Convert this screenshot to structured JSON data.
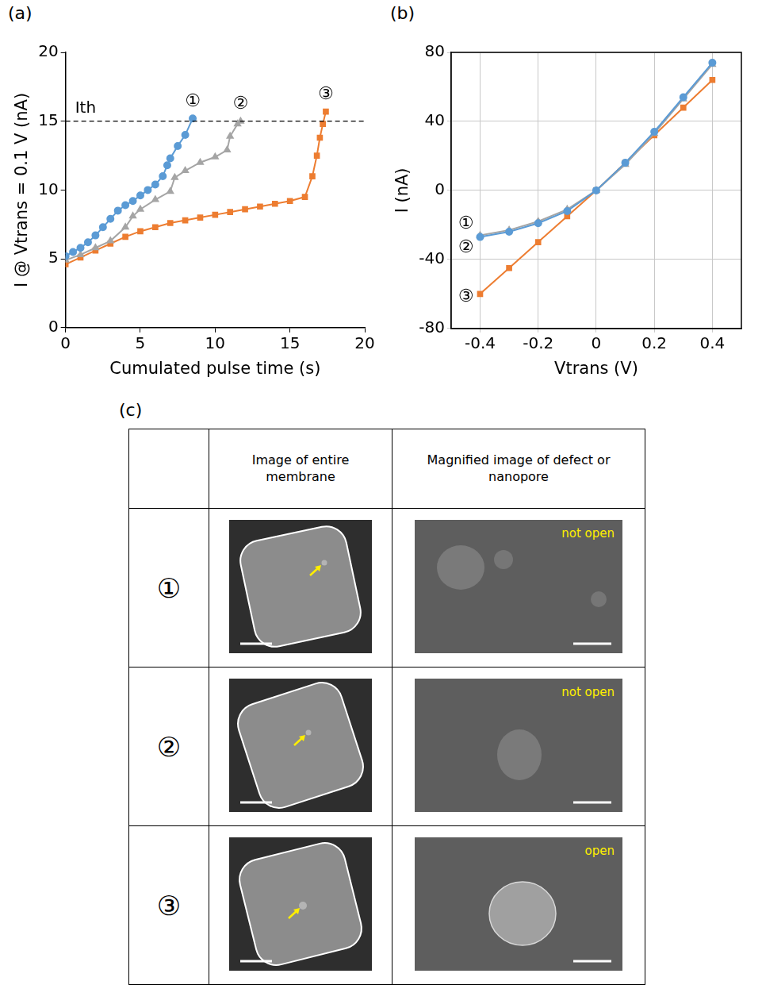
{
  "chart_data": [
    {
      "panel": "(a)",
      "type": "line",
      "xlabel": "Cumulated pulse time (s)",
      "ylabel": "I @ Vtrans = 0.1 V (nA)",
      "xlim": [
        0,
        20
      ],
      "xticks": [
        0,
        5,
        10,
        15,
        20
      ],
      "ylim": [
        0,
        20
      ],
      "yticks": [
        0,
        5,
        10,
        15,
        20
      ],
      "grid": false,
      "annotations": [
        {
          "text": "Ith",
          "y": 15,
          "line_style": "dashed"
        }
      ],
      "series": [
        {
          "name": "①",
          "color": "#5b9bd5",
          "marker": "circle",
          "x": [
            0,
            0.5,
            1,
            1.5,
            2,
            2.5,
            3,
            3.5,
            4,
            4.5,
            5,
            5.5,
            6,
            6.5,
            6.8,
            7,
            7.5,
            8,
            8.5
          ],
          "values": [
            5.2,
            5.5,
            5.8,
            6.2,
            6.7,
            7.3,
            7.9,
            8.5,
            8.9,
            9.2,
            9.6,
            10.0,
            10.4,
            11.0,
            11.8,
            12.3,
            13.2,
            14.0,
            15.2
          ]
        },
        {
          "name": "②",
          "color": "#a5a5a5",
          "marker": "triangle",
          "x": [
            0,
            1,
            2,
            3,
            4,
            4.5,
            5,
            6,
            7,
            7.3,
            8,
            9,
            10,
            10.8,
            11,
            11.5,
            11.7
          ],
          "values": [
            4.9,
            5.3,
            5.8,
            6.3,
            7.3,
            8.1,
            8.6,
            9.3,
            9.9,
            10.9,
            11.4,
            12.0,
            12.4,
            12.9,
            13.9,
            14.8,
            15.0
          ]
        },
        {
          "name": "③",
          "color": "#ed7d31",
          "marker": "square",
          "x": [
            0,
            1,
            2,
            3,
            4,
            5,
            6,
            7,
            8,
            9,
            10,
            11,
            12,
            13,
            14,
            15,
            16,
            16.5,
            16.8,
            17,
            17.2,
            17.4
          ],
          "values": [
            4.6,
            5.1,
            5.6,
            6.1,
            6.6,
            7.0,
            7.3,
            7.6,
            7.8,
            8.0,
            8.2,
            8.4,
            8.6,
            8.8,
            9.0,
            9.2,
            9.5,
            11.0,
            12.5,
            13.8,
            14.8,
            15.7
          ]
        }
      ]
    },
    {
      "panel": "(b)",
      "type": "line",
      "xlabel": "Vtrans (V)",
      "ylabel": "I (nA)",
      "xlim": [
        -0.5,
        0.5
      ],
      "xticks": [
        -0.4,
        -0.2,
        0,
        0.2,
        0.4
      ],
      "ylim": [
        -80,
        80
      ],
      "yticks": [
        -80,
        -40,
        0,
        40,
        80
      ],
      "grid": true,
      "series": [
        {
          "name": "①",
          "color": "#5b9bd5",
          "marker": "circle",
          "x": [
            -0.4,
            -0.3,
            -0.2,
            -0.1,
            0,
            0.1,
            0.2,
            0.3,
            0.4
          ],
          "values": [
            -27,
            -24,
            -19,
            -12,
            0,
            16,
            34,
            54,
            74
          ]
        },
        {
          "name": "②",
          "color": "#a5a5a5",
          "marker": "triangle",
          "x": [
            -0.4,
            -0.3,
            -0.2,
            -0.1,
            0,
            0.1,
            0.2,
            0.3,
            0.4
          ],
          "values": [
            -26,
            -23,
            -18,
            -11,
            0,
            15,
            33,
            53,
            73
          ]
        },
        {
          "name": "③",
          "color": "#ed7d31",
          "marker": "square",
          "x": [
            -0.4,
            -0.3,
            -0.2,
            -0.1,
            0,
            0.1,
            0.2,
            0.3,
            0.4
          ],
          "values": [
            -60,
            -45,
            -30,
            -15,
            0,
            16,
            32,
            48,
            64
          ]
        }
      ]
    }
  ],
  "table": {
    "panel": "(c)",
    "columns": [
      "Image of entire membrane",
      "Magnified image of defect or nanopore"
    ],
    "rows": [
      {
        "label": "①",
        "status": "not open"
      },
      {
        "label": "②",
        "status": "not open"
      },
      {
        "label": "③",
        "status": "open"
      }
    ]
  }
}
